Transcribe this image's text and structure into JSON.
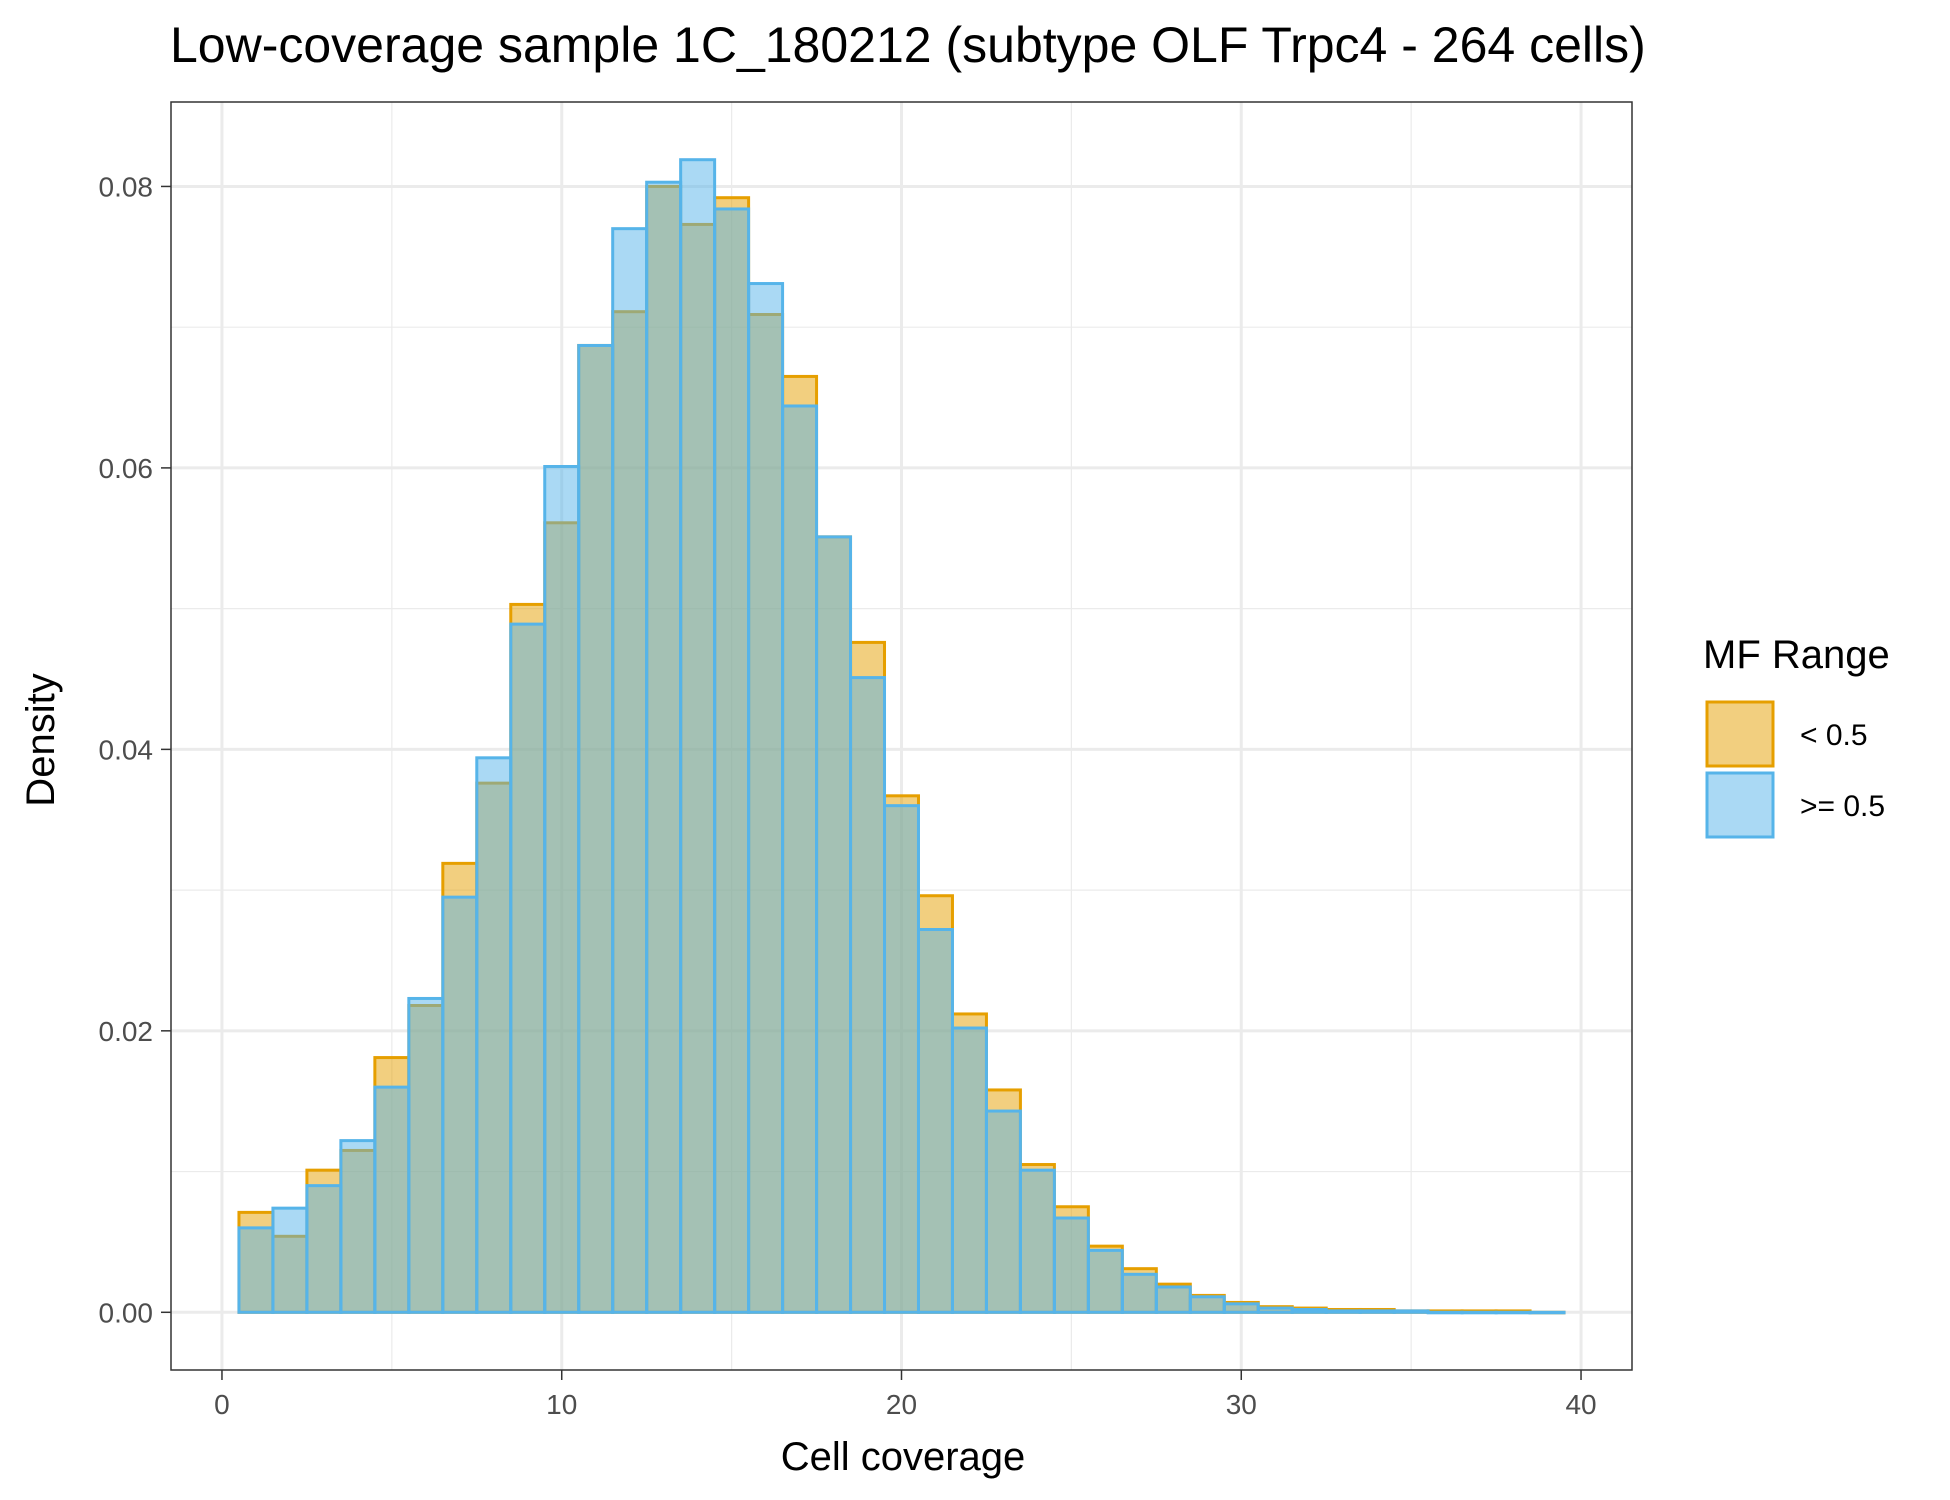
{
  "chart_data": {
    "type": "bar",
    "title": "Low-coverage sample 1C_180212 (subtype OLF Trpc4 - 264 cells)",
    "xlabel": "Cell coverage",
    "ylabel": "Density",
    "xlim": [
      -1.5,
      41.5
    ],
    "ylim": [
      -0.0041,
      0.086
    ],
    "x_ticks": [
      0,
      10,
      20,
      30,
      40
    ],
    "x_tick_labels": [
      "0",
      "10",
      "20",
      "30",
      "40"
    ],
    "y_ticks": [
      0,
      0.02,
      0.04,
      0.06,
      0.08
    ],
    "y_tick_labels": [
      "0.00",
      "0.02",
      "0.04",
      "0.06",
      "0.08"
    ],
    "grid": true,
    "legend": {
      "title": "MF Range",
      "placement": "right"
    },
    "bin_width": 1,
    "bin_starts": [
      0.5,
      1.5,
      2.5,
      3.5,
      4.5,
      5.5,
      6.5,
      7.5,
      8.5,
      9.5,
      10.5,
      11.5,
      12.5,
      13.5,
      14.5,
      15.5,
      16.5,
      17.5,
      18.5,
      19.5,
      20.5,
      21.5,
      22.5,
      23.5,
      24.5,
      25.5,
      26.5,
      27.5,
      28.5,
      29.5,
      30.5,
      31.5,
      32.5,
      33.5,
      34.5,
      35.5,
      36.5,
      37.5,
      38.5
    ],
    "series": [
      {
        "name": "< 0.5",
        "fill": "#E69F00",
        "values": [
          0.0071,
          0.0054,
          0.0101,
          0.0115,
          0.0181,
          0.0218,
          0.0319,
          0.0376,
          0.0503,
          0.0561,
          0.0687,
          0.0711,
          0.08,
          0.0773,
          0.0792,
          0.0709,
          0.0665,
          0.0551,
          0.0476,
          0.0367,
          0.0296,
          0.0212,
          0.0158,
          0.0105,
          0.0075,
          0.0047,
          0.0031,
          0.002,
          0.0012,
          0.0007,
          0.0004,
          0.0003,
          0.0002,
          0.0002,
          0.0001,
          0.0001,
          0.0001,
          0.0001,
          0.0
        ]
      },
      {
        "name": ">= 0.5",
        "fill": "#56B4E9",
        "values": [
          0.006,
          0.0074,
          0.009,
          0.0122,
          0.016,
          0.0223,
          0.0295,
          0.0394,
          0.0489,
          0.0601,
          0.0687,
          0.077,
          0.0803,
          0.0819,
          0.0784,
          0.0731,
          0.0644,
          0.0551,
          0.0451,
          0.036,
          0.0272,
          0.0202,
          0.0143,
          0.0101,
          0.0067,
          0.0044,
          0.0027,
          0.0018,
          0.0011,
          0.0006,
          0.0003,
          0.0002,
          0.0001,
          0.0001,
          0.0001,
          0.0,
          0.0,
          0.0,
          0.0
        ]
      }
    ]
  }
}
